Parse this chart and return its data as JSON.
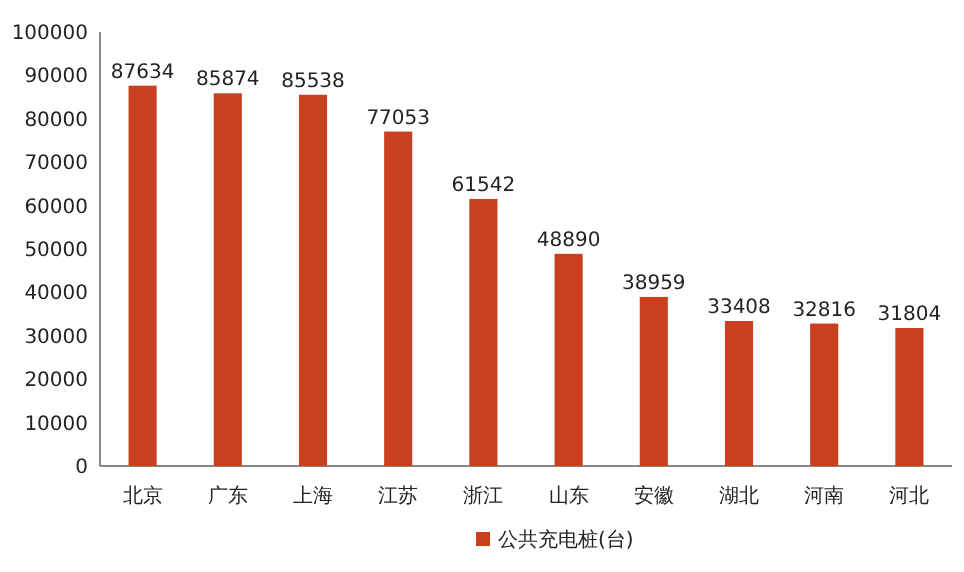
{
  "chart_data": {
    "type": "bar",
    "categories": [
      "北京",
      "广东",
      "上海",
      "江苏",
      "浙江",
      "山东",
      "安徽",
      "湖北",
      "河南",
      "河北"
    ],
    "series": [
      {
        "name": "公共充电桩(台)",
        "color": "#c9401f",
        "values": [
          87634,
          85874,
          85538,
          77053,
          61542,
          48890,
          38959,
          33408,
          32816,
          31804
        ]
      }
    ],
    "ylim": [
      0,
      100000
    ],
    "yticks": [
      0,
      10000,
      20000,
      30000,
      40000,
      50000,
      60000,
      70000,
      80000,
      90000,
      100000
    ],
    "data_labels": true,
    "legend": "bottom"
  }
}
